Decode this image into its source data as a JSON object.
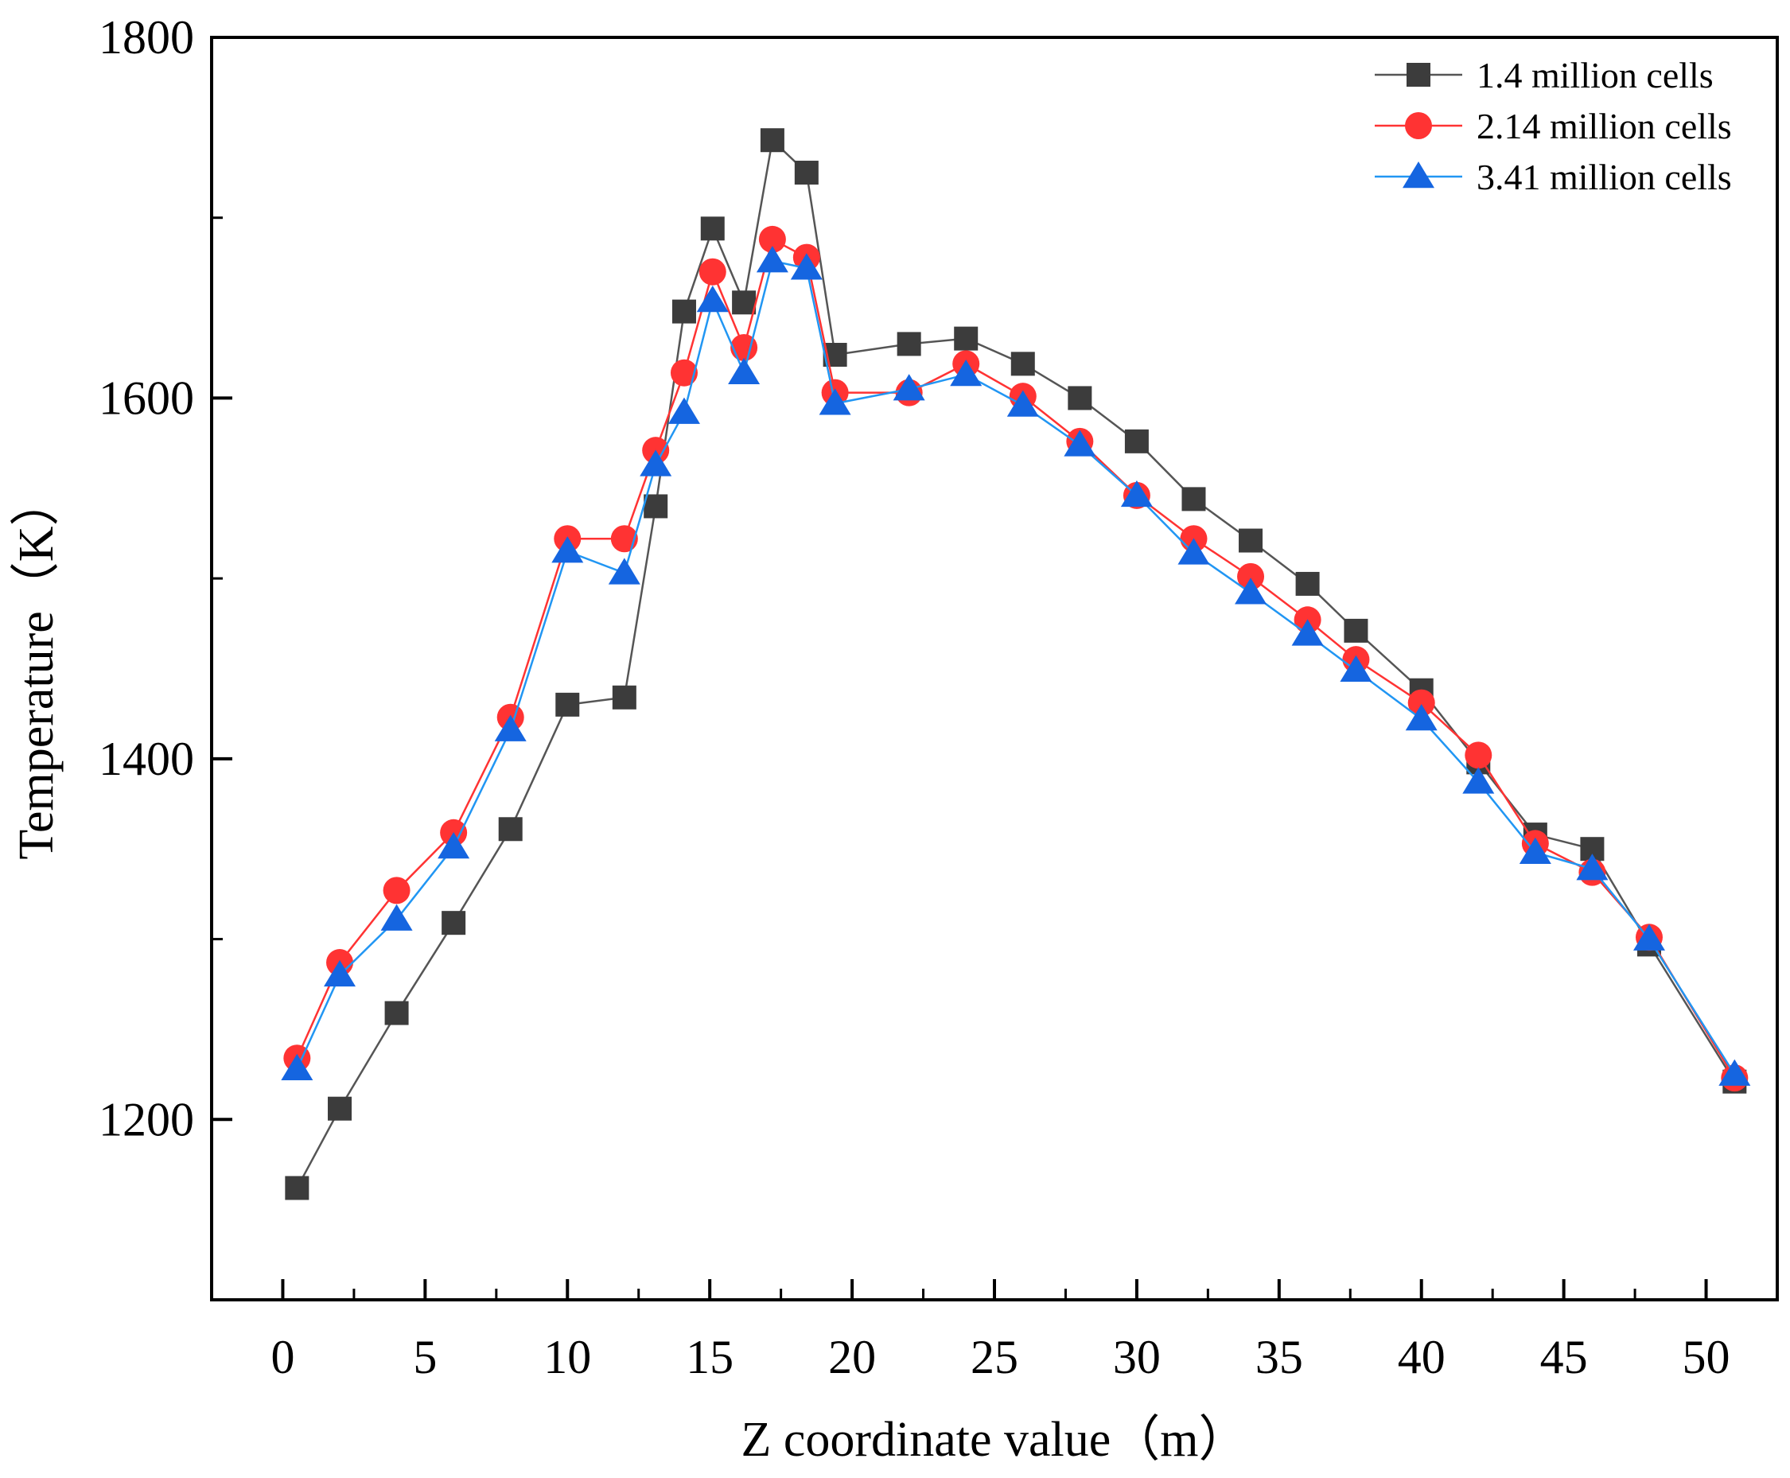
{
  "chart_data": {
    "type": "line",
    "xlabel": "Z coordinate value（m）",
    "ylabel": "Temperature（K）",
    "xlim": [
      -2.5,
      52.5
    ],
    "ylim": [
      1100,
      1800
    ],
    "xticks": [
      0,
      5,
      10,
      15,
      20,
      25,
      30,
      35,
      40,
      45,
      50
    ],
    "yticks": [
      1200,
      1400,
      1600,
      1800
    ],
    "legend_position": "top-right",
    "series": [
      {
        "name": "1.4 million cells",
        "marker": "square",
        "color": "#3c3c3c",
        "line_color": "#555555",
        "x": [
          0.5,
          2,
          4,
          6,
          8,
          10,
          12,
          13.1,
          14.1,
          15.1,
          16.2,
          17.2,
          18.4,
          19.4,
          22,
          24,
          26,
          28,
          30,
          32,
          34,
          36,
          37.7,
          40,
          42,
          44,
          46,
          48,
          51
        ],
        "y": [
          1162,
          1206,
          1259,
          1309,
          1361,
          1430,
          1434,
          1540,
          1648,
          1694,
          1653,
          1743,
          1725,
          1624,
          1630,
          1633,
          1619,
          1600,
          1576,
          1544,
          1521,
          1497,
          1471,
          1438,
          1398,
          1358,
          1350,
          1297,
          1221
        ]
      },
      {
        "name": "2.14 million cells",
        "marker": "circle",
        "color": "#ff3333",
        "line_color": "#ff3333",
        "x": [
          0.5,
          2,
          4,
          6,
          8,
          10,
          12,
          13.1,
          14.1,
          15.1,
          16.2,
          17.2,
          18.4,
          19.4,
          22,
          24,
          26,
          28,
          30,
          32,
          34,
          36,
          37.7,
          40,
          42,
          44,
          46,
          48,
          51
        ],
        "y": [
          1234,
          1287,
          1327,
          1359,
          1423,
          1522,
          1522,
          1571,
          1614,
          1670,
          1628,
          1688,
          1678,
          1603,
          1603,
          1619,
          1601,
          1576,
          1546,
          1522,
          1501,
          1477,
          1455,
          1431,
          1402,
          1353,
          1337,
          1301,
          1223
        ]
      },
      {
        "name": "3.41 million cells",
        "marker": "triangle",
        "color": "#1565e0",
        "line_color": "#2196f3",
        "x": [
          0.5,
          2,
          4,
          6,
          8,
          10,
          12,
          13.1,
          14.1,
          15.1,
          16.2,
          17.2,
          18.4,
          19.4,
          22,
          24,
          26,
          28,
          30,
          32,
          34,
          36,
          37.7,
          40,
          42,
          44,
          46,
          48,
          51
        ],
        "y": [
          1228,
          1280,
          1311,
          1351,
          1416,
          1515,
          1503,
          1563,
          1592,
          1654,
          1614,
          1676,
          1672,
          1597,
          1605,
          1613,
          1596,
          1574,
          1546,
          1514,
          1492,
          1469,
          1449,
          1422,
          1387,
          1348,
          1339,
          1300,
          1225
        ]
      }
    ]
  }
}
